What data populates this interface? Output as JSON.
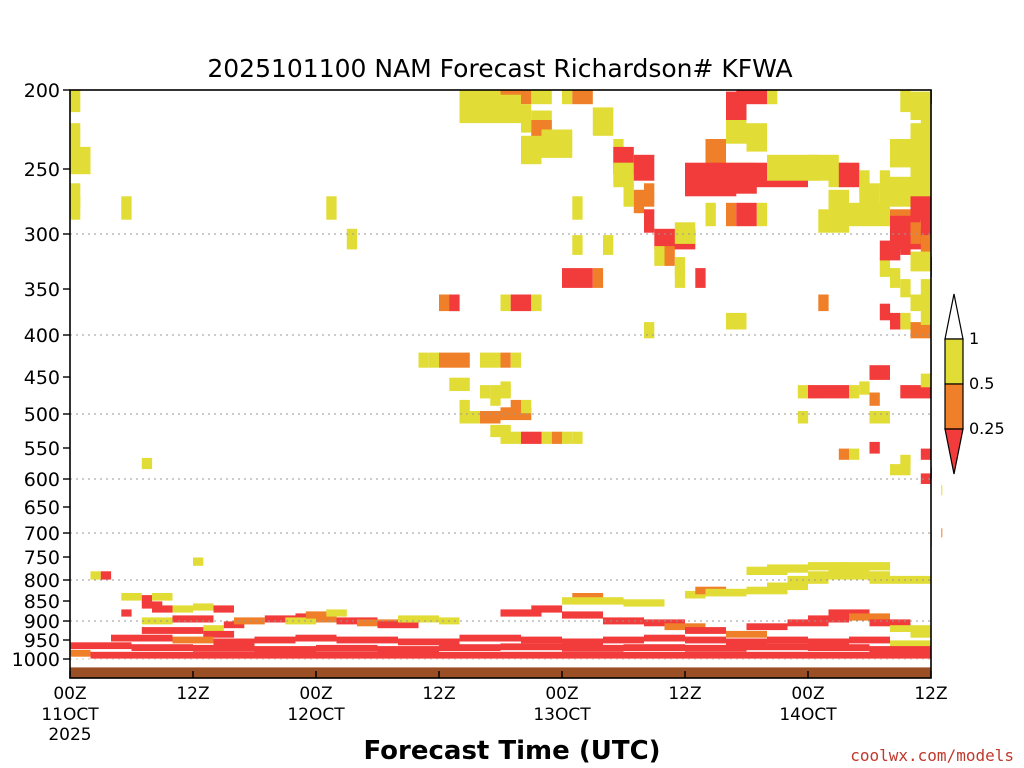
{
  "chart_data": {
    "type": "heatmap",
    "title": "2025101100 NAM Forecast Richardson# KFWA",
    "xlabel": "Forecast Time (UTC)",
    "credit": "coolwx.com/models",
    "y_ticks": [
      "200",
      "250",
      "300",
      "350",
      "400",
      "450",
      "500",
      "550",
      "600",
      "650",
      "700",
      "750",
      "800",
      "850",
      "900",
      "950",
      "1000"
    ],
    "y_ticks_values": [
      200,
      250,
      300,
      350,
      400,
      450,
      500,
      550,
      600,
      650,
      700,
      750,
      800,
      850,
      900,
      950,
      1000
    ],
    "y_gridlines": [
      300,
      400,
      500,
      600,
      700,
      800,
      900
    ],
    "y_scale": "log-pressure",
    "ylim": [
      200,
      1050
    ],
    "x_hours_range": [
      0,
      84
    ],
    "x_ticks": [
      {
        "hour": 0,
        "line1": "00Z",
        "line2": "11OCT",
        "line3": "2025"
      },
      {
        "hour": 12,
        "line1": "12Z",
        "line2": "",
        "line3": ""
      },
      {
        "hour": 24,
        "line1": "00Z",
        "line2": "12OCT",
        "line3": ""
      },
      {
        "hour": 36,
        "line1": "12Z",
        "line2": "",
        "line3": ""
      },
      {
        "hour": 48,
        "line1": "00Z",
        "line2": "13OCT",
        "line3": ""
      },
      {
        "hour": 60,
        "line1": "12Z",
        "line2": "",
        "line3": ""
      },
      {
        "hour": 72,
        "line1": "00Z",
        "line2": "14OCT",
        "line3": ""
      },
      {
        "hour": 84,
        "line1": "12Z",
        "line2": "",
        "line3": ""
      }
    ],
    "colorbar": {
      "labels": [
        "1",
        "0.5",
        "0.25"
      ],
      "colors": {
        "lt_0_25": "#f23b3b",
        "0_25_0_5": "#ef7f28",
        "0_5_1": "#e2dc36",
        "gt_1": "#ffffff"
      }
    },
    "ground": {
      "from_p": 1022,
      "color": "#9b4f25"
    },
    "cells": [
      [
        0,
        1,
        205,
        2
      ],
      [
        0,
        1,
        230,
        2
      ],
      [
        0,
        2,
        245,
        2
      ],
      [
        0,
        1,
        270,
        2
      ],
      [
        0,
        1,
        280,
        2
      ],
      [
        5,
        6,
        280,
        2
      ],
      [
        25,
        26,
        280,
        2
      ],
      [
        27,
        28,
        305,
        2
      ],
      [
        7,
        8,
        575,
        2
      ],
      [
        38,
        40,
        200,
        2
      ],
      [
        40,
        42,
        200,
        2
      ],
      [
        42,
        45,
        200,
        1
      ],
      [
        45,
        47,
        200,
        2
      ],
      [
        48,
        49,
        200,
        2
      ],
      [
        49,
        51,
        200,
        1
      ],
      [
        38,
        44,
        212,
        2
      ],
      [
        44,
        45,
        218,
        2
      ],
      [
        45,
        47,
        222,
        2
      ],
      [
        45,
        47,
        228,
        1
      ],
      [
        46,
        49,
        234,
        2
      ],
      [
        44,
        46,
        238,
        2
      ],
      [
        51,
        53,
        220,
        2
      ],
      [
        53,
        54,
        240,
        2
      ],
      [
        53,
        55,
        245,
        0
      ],
      [
        53,
        55,
        255,
        2
      ],
      [
        55,
        57,
        250,
        0
      ],
      [
        54,
        55,
        270,
        2
      ],
      [
        49,
        50,
        280,
        2
      ],
      [
        55,
        56,
        275,
        1
      ],
      [
        56,
        57,
        270,
        1
      ],
      [
        56,
        57,
        290,
        0
      ],
      [
        57,
        58,
        305,
        0
      ],
      [
        58,
        61,
        305,
        0
      ],
      [
        57,
        58,
        320,
        2
      ],
      [
        58,
        59,
        320,
        1
      ],
      [
        59,
        60,
        330,
        2
      ],
      [
        61,
        62,
        340,
        0
      ],
      [
        49,
        50,
        310,
        2
      ],
      [
        52,
        53,
        310,
        2
      ],
      [
        48,
        51,
        340,
        0
      ],
      [
        51,
        52,
        340,
        1
      ],
      [
        59,
        61,
        300,
        2
      ],
      [
        59,
        60,
        340,
        2
      ],
      [
        64,
        67,
        255,
        2
      ],
      [
        62,
        64,
        240,
        1
      ],
      [
        64,
        66,
        225,
        2
      ],
      [
        66,
        68,
        230,
        2
      ],
      [
        64,
        67,
        260,
        0
      ],
      [
        60,
        72,
        255,
        0
      ],
      [
        60,
        65,
        262,
        0
      ],
      [
        62,
        63,
        285,
        2
      ],
      [
        64,
        65,
        285,
        1
      ],
      [
        65,
        66,
        285,
        0
      ],
      [
        66,
        67,
        285,
        0
      ],
      [
        67,
        68,
        285,
        2
      ],
      [
        68,
        73,
        250,
        2
      ],
      [
        72,
        75,
        250,
        2
      ],
      [
        74,
        76,
        255,
        2
      ],
      [
        74,
        76,
        275,
        2
      ],
      [
        73,
        76,
        290,
        2
      ],
      [
        76,
        78,
        285,
        2
      ],
      [
        75,
        77,
        255,
        0
      ],
      [
        77,
        78,
        260,
        2
      ],
      [
        79,
        80,
        260,
        2
      ],
      [
        80,
        82,
        265,
        2
      ],
      [
        77,
        79,
        270,
        2
      ],
      [
        79,
        84,
        270,
        2
      ],
      [
        78,
        80,
        285,
        2
      ],
      [
        80,
        82,
        290,
        1
      ],
      [
        80,
        83,
        295,
        0
      ],
      [
        83,
        84,
        295,
        0
      ],
      [
        82,
        84,
        280,
        0
      ],
      [
        80,
        84,
        305,
        0
      ],
      [
        82,
        83,
        300,
        1
      ],
      [
        81,
        82,
        310,
        0
      ],
      [
        83,
        84,
        310,
        1
      ],
      [
        84,
        84.4,
        330,
        0
      ],
      [
        65,
        68,
        200,
        0
      ],
      [
        68,
        69,
        200,
        2
      ],
      [
        64,
        66,
        210,
        0
      ],
      [
        81,
        82,
        205,
        2
      ],
      [
        82,
        84,
        210,
        2
      ],
      [
        83,
        84,
        220,
        2
      ],
      [
        82,
        84,
        230,
        2
      ],
      [
        84,
        84.4,
        200,
        0
      ],
      [
        80,
        84,
        240,
        2
      ],
      [
        82,
        84,
        255,
        2
      ],
      [
        83,
        84,
        250,
        2
      ],
      [
        36,
        38,
        365,
        1
      ],
      [
        37,
        38,
        365,
        0
      ],
      [
        42,
        43,
        365,
        2
      ],
      [
        43,
        45,
        365,
        0
      ],
      [
        45,
        46,
        365,
        2
      ],
      [
        35,
        36,
        430,
        2
      ],
      [
        36,
        39,
        430,
        1
      ],
      [
        40,
        42,
        430,
        2
      ],
      [
        42,
        43,
        430,
        1
      ],
      [
        43,
        44,
        430,
        2
      ],
      [
        34,
        35,
        430,
        2
      ],
      [
        40,
        41,
        470,
        2
      ],
      [
        41,
        43,
        470,
        2
      ],
      [
        37,
        39,
        460,
        2
      ],
      [
        41,
        42,
        480,
        2
      ],
      [
        42,
        43,
        465,
        2
      ],
      [
        38,
        39,
        490,
        2
      ],
      [
        38,
        40,
        505,
        2
      ],
      [
        40,
        42,
        505,
        1
      ],
      [
        42,
        45,
        500,
        1
      ],
      [
        43,
        44,
        490,
        1
      ],
      [
        44,
        45,
        490,
        2
      ],
      [
        41,
        43,
        525,
        2
      ],
      [
        42,
        44,
        535,
        2
      ],
      [
        44,
        46,
        535,
        0
      ],
      [
        46,
        47,
        535,
        2
      ],
      [
        47,
        48,
        535,
        1
      ],
      [
        48,
        49,
        535,
        2
      ],
      [
        49,
        50,
        535,
        2
      ],
      [
        71,
        73,
        470,
        2
      ],
      [
        72,
        76,
        470,
        0
      ],
      [
        76,
        77,
        470,
        2
      ],
      [
        77,
        78,
        465,
        2
      ],
      [
        78,
        79,
        480,
        1
      ],
      [
        78,
        80,
        505,
        2
      ],
      [
        75,
        76,
        560,
        1
      ],
      [
        76,
        77,
        560,
        2
      ],
      [
        78,
        79,
        550,
        0
      ],
      [
        78,
        80,
        445,
        0
      ],
      [
        81,
        82,
        470,
        0
      ],
      [
        82,
        86,
        470,
        0
      ],
      [
        83,
        84,
        455,
        2
      ],
      [
        83,
        84,
        560,
        0
      ],
      [
        84,
        85,
        590,
        0
      ],
      [
        81,
        82,
        570,
        2
      ],
      [
        80,
        82,
        585,
        2
      ],
      [
        83,
        84,
        600,
        0
      ],
      [
        84,
        86,
        440,
        2
      ],
      [
        82,
        85,
        395,
        1
      ],
      [
        83,
        84,
        380,
        2
      ],
      [
        81,
        82,
        385,
        2
      ],
      [
        80,
        81,
        385,
        0
      ],
      [
        79,
        80,
        375,
        0
      ],
      [
        82,
        84,
        365,
        2
      ],
      [
        83,
        84,
        350,
        2
      ],
      [
        81,
        82,
        350,
        2
      ],
      [
        80,
        81,
        340,
        2
      ],
      [
        79,
        80,
        330,
        2
      ],
      [
        79,
        81,
        315,
        0
      ],
      [
        82,
        84,
        325,
        2
      ],
      [
        73,
        74,
        365,
        1
      ],
      [
        84,
        85,
        420,
        2
      ],
      [
        84,
        85,
        430,
        2
      ],
      [
        71,
        72,
        505,
        2
      ],
      [
        56,
        57,
        395,
        2
      ],
      [
        64,
        66,
        385,
        2
      ],
      [
        85,
        86,
        620,
        2
      ],
      [
        85,
        86,
        700,
        1
      ],
      [
        84,
        85,
        705,
        2
      ],
      [
        84,
        85,
        720,
        2
      ],
      [
        2,
        3,
        790,
        2
      ],
      [
        3,
        4,
        790,
        0
      ],
      [
        5,
        7,
        840,
        2
      ],
      [
        7,
        8,
        845,
        0
      ],
      [
        8,
        10,
        840,
        2
      ],
      [
        12,
        13,
        760,
        2
      ],
      [
        5,
        6,
        880,
        0
      ],
      [
        7,
        9,
        860,
        0
      ],
      [
        8,
        10,
        870,
        0
      ],
      [
        10,
        12,
        870,
        2
      ],
      [
        12,
        14,
        865,
        2
      ],
      [
        14,
        16,
        870,
        0
      ],
      [
        7,
        10,
        900,
        2
      ],
      [
        10,
        14,
        895,
        0
      ],
      [
        13,
        15,
        920,
        2
      ],
      [
        15,
        17,
        910,
        0
      ],
      [
        16,
        19,
        900,
        1
      ],
      [
        19,
        22,
        895,
        0
      ],
      [
        22,
        25,
        890,
        0
      ],
      [
        21,
        24,
        900,
        2
      ],
      [
        24,
        26,
        895,
        1
      ],
      [
        26,
        30,
        900,
        0
      ],
      [
        28,
        32,
        905,
        1
      ],
      [
        30,
        34,
        910,
        0
      ],
      [
        32,
        36,
        895,
        2
      ],
      [
        36,
        38,
        900,
        2
      ],
      [
        25,
        27,
        880,
        2
      ],
      [
        23,
        25,
        885,
        1
      ],
      [
        7,
        13,
        925,
        0
      ],
      [
        13,
        16,
        935,
        0
      ],
      [
        4,
        10,
        945,
        0
      ],
      [
        10,
        14,
        950,
        1
      ],
      [
        14,
        18,
        955,
        0
      ],
      [
        18,
        22,
        950,
        0
      ],
      [
        22,
        26,
        945,
        0
      ],
      [
        26,
        32,
        950,
        0
      ],
      [
        32,
        38,
        955,
        0
      ],
      [
        38,
        44,
        945,
        0
      ],
      [
        44,
        48,
        950,
        0
      ],
      [
        48,
        52,
        955,
        0
      ],
      [
        52,
        56,
        950,
        0
      ],
      [
        56,
        60,
        945,
        0
      ],
      [
        60,
        64,
        950,
        0
      ],
      [
        64,
        68,
        955,
        0
      ],
      [
        68,
        72,
        950,
        0
      ],
      [
        72,
        76,
        955,
        0
      ],
      [
        76,
        80,
        950,
        0
      ],
      [
        80,
        84,
        960,
        2
      ],
      [
        0,
        6,
        965,
        0
      ],
      [
        6,
        12,
        970,
        0
      ],
      [
        12,
        18,
        972,
        0
      ],
      [
        18,
        24,
        975,
        0
      ],
      [
        24,
        30,
        972,
        0
      ],
      [
        30,
        36,
        975,
        0
      ],
      [
        36,
        42,
        970,
        0
      ],
      [
        42,
        48,
        968,
        0
      ],
      [
        48,
        54,
        972,
        0
      ],
      [
        54,
        60,
        970,
        0
      ],
      [
        60,
        66,
        972,
        0
      ],
      [
        66,
        72,
        968,
        0
      ],
      [
        72,
        78,
        970,
        0
      ],
      [
        78,
        84,
        975,
        0
      ],
      [
        0,
        2,
        985,
        1
      ],
      [
        2,
        84,
        990,
        0
      ],
      [
        42,
        46,
        880,
        0
      ],
      [
        45,
        48,
        870,
        0
      ],
      [
        48,
        52,
        885,
        0
      ],
      [
        52,
        56,
        900,
        0
      ],
      [
        56,
        60,
        905,
        0
      ],
      [
        58,
        62,
        915,
        1
      ],
      [
        60,
        64,
        925,
        0
      ],
      [
        64,
        68,
        935,
        1
      ],
      [
        66,
        70,
        915,
        0
      ],
      [
        70,
        74,
        905,
        0
      ],
      [
        72,
        76,
        895,
        0
      ],
      [
        74,
        78,
        880,
        0
      ],
      [
        76,
        80,
        890,
        1
      ],
      [
        78,
        82,
        905,
        0
      ],
      [
        80,
        84,
        920,
        2
      ],
      [
        82,
        84,
        935,
        2
      ],
      [
        49,
        52,
        840,
        1
      ],
      [
        48,
        52,
        850,
        2
      ],
      [
        52,
        54,
        850,
        2
      ],
      [
        54,
        58,
        855,
        2
      ],
      [
        60,
        62,
        835,
        2
      ],
      [
        61,
        64,
        825,
        1
      ],
      [
        62,
        66,
        830,
        2
      ],
      [
        66,
        70,
        825,
        2
      ],
      [
        68,
        72,
        815,
        2
      ],
      [
        70,
        74,
        800,
        2
      ],
      [
        72,
        76,
        790,
        2
      ],
      [
        74,
        78,
        785,
        2
      ],
      [
        76,
        80,
        790,
        2
      ],
      [
        78,
        84,
        800,
        2
      ],
      [
        66,
        70,
        780,
        2
      ],
      [
        68,
        72,
        775,
        2
      ],
      [
        72,
        76,
        770,
        2
      ],
      [
        75,
        80,
        770,
        2
      ]
    ]
  }
}
